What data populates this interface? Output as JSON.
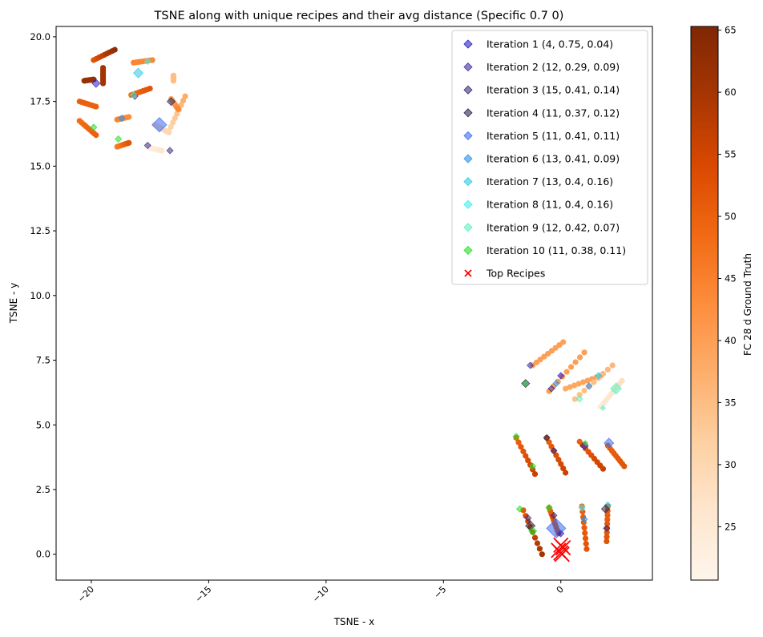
{
  "chart_data": {
    "type": "scatter",
    "title": "TSNE along with unique recipes and their avg distance (Specific 0.7 0)",
    "xlabel": "TSNE - x",
    "ylabel": "TSNE - y",
    "xlim": [
      -21.5,
      3.9
    ],
    "ylim": [
      -1.0,
      20.4
    ],
    "x_ticks": [
      -20,
      -15,
      -10,
      -5,
      0
    ],
    "x_tick_labels": [
      "−20",
      "−15",
      "−10",
      "−5",
      "0"
    ],
    "y_ticks": [
      0.0,
      2.5,
      5.0,
      7.5,
      10.0,
      12.5,
      15.0,
      17.5,
      20.0
    ],
    "y_tick_labels": [
      "0.0",
      "2.5",
      "5.0",
      "7.5",
      "10.0",
      "12.5",
      "15.0",
      "17.5",
      "20.0"
    ],
    "grid": false,
    "colorbar": {
      "label": "FC 28 d Ground Truth",
      "min": 20.7,
      "max": 65.3,
      "ticks": [
        25,
        30,
        35,
        40,
        45,
        50,
        55,
        60,
        65
      ],
      "tick_labels": [
        "25",
        "30",
        "35",
        "40",
        "45",
        "50",
        "55",
        "60",
        "65"
      ],
      "colormap": "Oranges"
    },
    "background_curves": [
      {
        "points": [
          [
            -19.9,
            19.1
          ],
          [
            -19.0,
            19.5
          ]
        ],
        "values": [
          52,
          63
        ]
      },
      {
        "points": [
          [
            -20.3,
            18.3
          ],
          [
            -19.9,
            18.35
          ]
        ],
        "values": [
          62,
          62
        ]
      },
      {
        "points": [
          [
            -19.5,
            18.8
          ],
          [
            -19.5,
            18.2
          ]
        ],
        "values": [
          60,
          60
        ]
      },
      {
        "points": [
          [
            -20.5,
            17.5
          ],
          [
            -19.8,
            17.3
          ]
        ],
        "values": [
          50,
          50
        ]
      },
      {
        "points": [
          [
            -20.5,
            16.75
          ],
          [
            -19.8,
            16.2
          ]
        ],
        "values": [
          48,
          50
        ]
      },
      {
        "points": [
          [
            -18.9,
            15.75
          ],
          [
            -18.4,
            15.9
          ]
        ],
        "values": [
          45,
          52
        ]
      },
      {
        "points": [
          [
            -18.9,
            16.8
          ],
          [
            -18.4,
            16.9
          ]
        ],
        "values": [
          45,
          43
        ]
      },
      {
        "points": [
          [
            -18.3,
            17.75
          ],
          [
            -17.5,
            18.0
          ]
        ],
        "values": [
          48,
          52
        ]
      },
      {
        "points": [
          [
            -18.2,
            19.0
          ],
          [
            -17.4,
            19.1
          ]
        ],
        "values": [
          44,
          44
        ]
      },
      {
        "points": [
          [
            -16.7,
            16.35
          ],
          [
            -16.0,
            17.7
          ]
        ],
        "values": [
          30,
          38
        ]
      },
      {
        "points": [
          [
            -16.6,
            17.6
          ],
          [
            -16.3,
            17.2
          ]
        ],
        "values": [
          38,
          44
        ]
      },
      {
        "points": [
          [
            -16.5,
            18.3
          ],
          [
            -16.5,
            18.5
          ]
        ],
        "values": [
          35,
          35
        ]
      },
      {
        "points": [
          [
            -17.3,
            16.6
          ],
          [
            -16.7,
            16.3
          ]
        ],
        "values": [
          28,
          30
        ]
      },
      {
        "points": [
          [
            -17.5,
            15.7
          ],
          [
            -17.0,
            15.6
          ]
        ],
        "values": [
          23,
          26
        ]
      },
      {
        "points": [
          [
            -1.2,
            7.3
          ],
          [
            0.1,
            8.2
          ]
        ],
        "values": [
          40,
          40
        ]
      },
      {
        "points": [
          [
            -0.5,
            6.3
          ],
          [
            1.0,
            7.8
          ]
        ],
        "values": [
          40,
          40
        ]
      },
      {
        "points": [
          [
            0.2,
            6.4
          ],
          [
            1.7,
            6.9
          ]
        ],
        "values": [
          38,
          40
        ]
      },
      {
        "points": [
          [
            0.6,
            6.0
          ],
          [
            2.2,
            7.3
          ]
        ],
        "values": [
          34,
          36
        ]
      },
      {
        "points": [
          [
            1.7,
            5.7
          ],
          [
            2.6,
            6.7
          ]
        ],
        "values": [
          25,
          28
        ]
      },
      {
        "points": [
          [
            -1.9,
            4.5
          ],
          [
            -1.1,
            3.1
          ]
        ],
        "values": [
          50,
          56
        ]
      },
      {
        "points": [
          [
            -0.6,
            4.5
          ],
          [
            0.2,
            3.15
          ]
        ],
        "values": [
          50,
          56
        ]
      },
      {
        "points": [
          [
            0.8,
            4.35
          ],
          [
            1.8,
            3.3
          ]
        ],
        "values": [
          50,
          56
        ]
      },
      {
        "points": [
          [
            2.0,
            4.2
          ],
          [
            2.7,
            3.4
          ]
        ],
        "values": [
          50,
          52
        ]
      },
      {
        "points": [
          [
            -1.6,
            1.7
          ],
          [
            -0.8,
            0.0
          ]
        ],
        "values": [
          52,
          60
        ]
      },
      {
        "points": [
          [
            -0.5,
            1.8
          ],
          [
            -0.1,
            0.8
          ]
        ],
        "values": [
          50,
          56
        ]
      },
      {
        "points": [
          [
            0.9,
            1.85
          ],
          [
            1.1,
            0.2
          ]
        ],
        "values": [
          50,
          52
        ]
      },
      {
        "points": [
          [
            2.0,
            1.85
          ],
          [
            1.95,
            0.5
          ]
        ],
        "values": [
          50,
          52
        ]
      }
    ],
    "iterations": [
      {
        "name": "Iteration 1 (4, 0.75, 0.04)",
        "color": "#2a1fc7"
      },
      {
        "name": "Iteration 2 (12, 0.29, 0.09)",
        "color": "#3a2fa0"
      },
      {
        "name": "Iteration 3 (15, 0.41, 0.14)",
        "color": "#3d2a78"
      },
      {
        "name": "Iteration 4 (11, 0.37, 0.12)",
        "color": "#2c2550"
      },
      {
        "name": "Iteration 5 (11, 0.41, 0.11)",
        "color": "#3b6cf2"
      },
      {
        "name": "Iteration 6 (13, 0.41, 0.09)",
        "color": "#2d8fe8"
      },
      {
        "name": "Iteration 7 (13, 0.4, 0.16)",
        "color": "#27cbe6"
      },
      {
        "name": "Iteration 8 (11, 0.4, 0.16)",
        "color": "#3ff0ee"
      },
      {
        "name": "Iteration 9 (12, 0.42, 0.07)",
        "color": "#5cf0c0"
      },
      {
        "name": "Iteration 10 (11, 0.38, 0.11)",
        "color": "#24e024"
      }
    ],
    "iteration_markers": [
      {
        "i": 1,
        "x": -19.8,
        "y": 18.2,
        "s": 5
      },
      {
        "i": 2,
        "x": -18.15,
        "y": 17.7,
        "s": 4
      },
      {
        "i": 3,
        "x": -16.65,
        "y": 15.6,
        "s": 4
      },
      {
        "i": 4,
        "x": -16.6,
        "y": 17.5,
        "s": 5
      },
      {
        "i": 5,
        "x": -17.1,
        "y": 16.6,
        "s": 9
      },
      {
        "i": 3,
        "x": -17.6,
        "y": 15.8,
        "s": 4
      },
      {
        "i": 6,
        "x": -18.7,
        "y": 16.85,
        "s": 4
      },
      {
        "i": 7,
        "x": -18.0,
        "y": 18.6,
        "s": 6
      },
      {
        "i": 8,
        "x": -17.6,
        "y": 19.05,
        "s": 4
      },
      {
        "i": 9,
        "x": -18.2,
        "y": 17.75,
        "s": 4
      },
      {
        "i": 10,
        "x": -19.9,
        "y": 16.5,
        "s": 4
      },
      {
        "i": 10,
        "x": -18.85,
        "y": 16.05,
        "s": 4
      },
      {
        "i": 2,
        "x": -1.3,
        "y": 7.3,
        "s": 4
      },
      {
        "i": 4,
        "x": -1.5,
        "y": 6.6,
        "s": 5
      },
      {
        "i": 10,
        "x": -1.5,
        "y": 6.6,
        "s": 3
      },
      {
        "i": 3,
        "x": -0.4,
        "y": 6.4,
        "s": 4
      },
      {
        "i": 6,
        "x": -0.2,
        "y": 6.6,
        "s": 4
      },
      {
        "i": 1,
        "x": 0.0,
        "y": 6.9,
        "s": 4
      },
      {
        "i": 6,
        "x": 1.2,
        "y": 6.5,
        "s": 4
      },
      {
        "i": 7,
        "x": 1.6,
        "y": 6.9,
        "s": 4
      },
      {
        "i": 9,
        "x": 2.35,
        "y": 6.4,
        "s": 7
      },
      {
        "i": 9,
        "x": 0.8,
        "y": 6.0,
        "s": 4
      },
      {
        "i": 9,
        "x": 1.8,
        "y": 5.65,
        "s": 3
      },
      {
        "i": 5,
        "x": 2.05,
        "y": 4.3,
        "s": 6
      },
      {
        "i": 1,
        "x": 1.0,
        "y": 4.2,
        "s": 5
      },
      {
        "i": 10,
        "x": 1.05,
        "y": 4.3,
        "s": 3
      },
      {
        "i": 3,
        "x": -0.3,
        "y": 4.0,
        "s": 4
      },
      {
        "i": 4,
        "x": -0.6,
        "y": 4.5,
        "s": 4
      },
      {
        "i": 10,
        "x": -1.9,
        "y": 4.55,
        "s": 4
      },
      {
        "i": 10,
        "x": -1.2,
        "y": 3.4,
        "s": 4
      },
      {
        "i": 5,
        "x": -0.2,
        "y": 1.0,
        "s": 12
      },
      {
        "i": 1,
        "x": 0.0,
        "y": 0.8,
        "s": 4
      },
      {
        "i": 4,
        "x": -1.3,
        "y": 1.1,
        "s": 6
      },
      {
        "i": 10,
        "x": -1.2,
        "y": 0.9,
        "s": 5
      },
      {
        "i": 10,
        "x": -1.75,
        "y": 1.75,
        "s": 4
      },
      {
        "i": 10,
        "x": -0.5,
        "y": 1.8,
        "s": 4
      },
      {
        "i": 3,
        "x": -1.4,
        "y": 1.4,
        "s": 4
      },
      {
        "i": 3,
        "x": -0.3,
        "y": 1.5,
        "s": 4
      },
      {
        "i": 8,
        "x": 0.9,
        "y": 1.8,
        "s": 4
      },
      {
        "i": 7,
        "x": 2.0,
        "y": 1.9,
        "s": 4
      },
      {
        "i": 4,
        "x": 1.9,
        "y": 1.75,
        "s": 5
      },
      {
        "i": 3,
        "x": 1.95,
        "y": 1.0,
        "s": 4
      },
      {
        "i": 6,
        "x": 1.0,
        "y": 1.35,
        "s": 4
      }
    ],
    "top_recipes": {
      "name": "Top Recipes",
      "color": "#ff0000",
      "points": [
        [
          0.0,
          0.05
        ],
        [
          0.1,
          0.25
        ],
        [
          -0.1,
          0.15
        ],
        [
          0.0,
          0.35
        ],
        [
          0.05,
          0.0
        ]
      ]
    },
    "legend_position": "upper right"
  }
}
